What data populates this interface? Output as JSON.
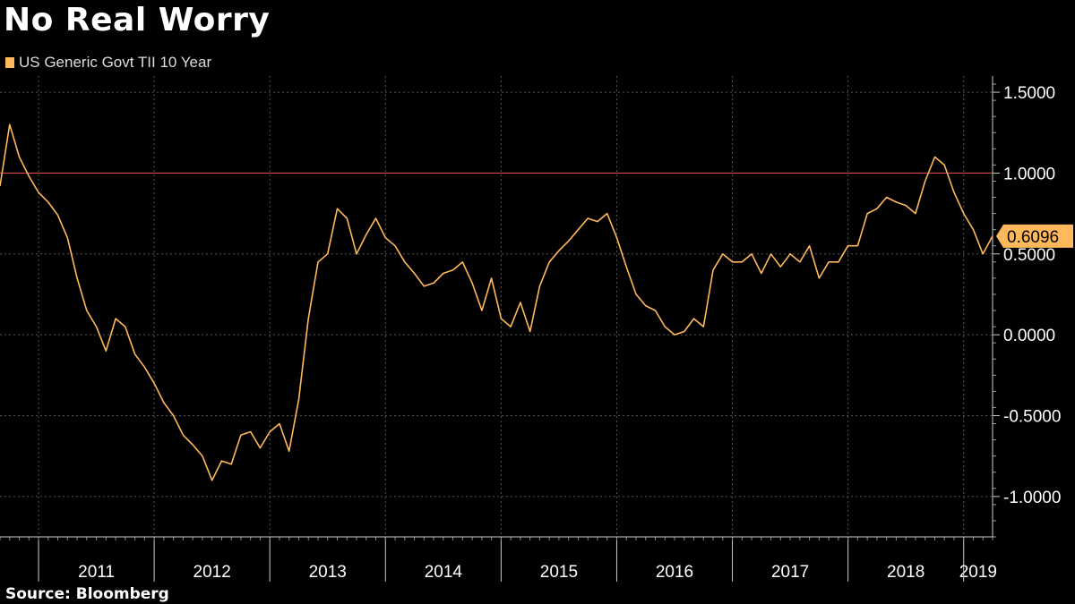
{
  "title": "No Real Worry",
  "source": "Source: Bloomberg",
  "colors": {
    "series": "#ffb85c",
    "reference_line": "#d64a3a",
    "grid": "#555555",
    "background": "#000000"
  },
  "chart_data": {
    "type": "line",
    "legend_position": "top-left",
    "grid": true,
    "y_axis_side": "right",
    "ylim": [
      -1.25,
      1.6
    ],
    "y_ticks": [
      1.5,
      1.0,
      0.5,
      0.0,
      -0.5,
      -1.0
    ],
    "y_tick_labels": [
      "1.5000",
      "1.0000",
      "0.5000",
      "0.0000",
      "-0.5000",
      "-1.0000"
    ],
    "x_range": [
      "2010-09",
      "2019-04"
    ],
    "x_tick_labels": [
      "2011",
      "2012",
      "2013",
      "2014",
      "2015",
      "2016",
      "2017",
      "2018",
      "2019"
    ],
    "reference_line": 1.0,
    "last_value_label": "0.6096",
    "series": [
      {
        "name": "US Generic Govt TII 10 Year",
        "x": [
          "2010-09",
          "2010-10",
          "2010-11",
          "2010-12",
          "2011-01",
          "2011-02",
          "2011-03",
          "2011-04",
          "2011-05",
          "2011-06",
          "2011-07",
          "2011-08",
          "2011-09",
          "2011-10",
          "2011-11",
          "2011-12",
          "2012-01",
          "2012-02",
          "2012-03",
          "2012-04",
          "2012-05",
          "2012-06",
          "2012-07",
          "2012-08",
          "2012-09",
          "2012-10",
          "2012-11",
          "2012-12",
          "2013-01",
          "2013-02",
          "2013-03",
          "2013-04",
          "2013-05",
          "2013-06",
          "2013-07",
          "2013-08",
          "2013-09",
          "2013-10",
          "2013-11",
          "2013-12",
          "2014-01",
          "2014-02",
          "2014-03",
          "2014-04",
          "2014-05",
          "2014-06",
          "2014-07",
          "2014-08",
          "2014-09",
          "2014-10",
          "2014-11",
          "2014-12",
          "2015-01",
          "2015-02",
          "2015-03",
          "2015-04",
          "2015-05",
          "2015-06",
          "2015-07",
          "2015-08",
          "2015-09",
          "2015-10",
          "2015-11",
          "2015-12",
          "2016-01",
          "2016-02",
          "2016-03",
          "2016-04",
          "2016-05",
          "2016-06",
          "2016-07",
          "2016-08",
          "2016-09",
          "2016-10",
          "2016-11",
          "2016-12",
          "2017-01",
          "2017-02",
          "2017-03",
          "2017-04",
          "2017-05",
          "2017-06",
          "2017-07",
          "2017-08",
          "2017-09",
          "2017-10",
          "2017-11",
          "2017-12",
          "2018-01",
          "2018-02",
          "2018-03",
          "2018-04",
          "2018-05",
          "2018-06",
          "2018-07",
          "2018-08",
          "2018-09",
          "2018-10",
          "2018-11",
          "2018-12",
          "2019-01",
          "2019-02",
          "2019-03",
          "2019-04"
        ],
        "values": [
          0.92,
          1.3,
          1.1,
          0.98,
          0.88,
          0.82,
          0.74,
          0.6,
          0.35,
          0.15,
          0.05,
          -0.1,
          0.1,
          0.05,
          -0.12,
          -0.2,
          -0.3,
          -0.42,
          -0.5,
          -0.62,
          -0.68,
          -0.75,
          -0.9,
          -0.78,
          -0.8,
          -0.62,
          -0.6,
          -0.7,
          -0.6,
          -0.55,
          -0.72,
          -0.4,
          0.1,
          0.45,
          0.5,
          0.78,
          0.72,
          0.5,
          0.62,
          0.72,
          0.6,
          0.55,
          0.45,
          0.38,
          0.3,
          0.32,
          0.38,
          0.4,
          0.45,
          0.32,
          0.15,
          0.35,
          0.1,
          0.05,
          0.2,
          0.02,
          0.3,
          0.45,
          0.52,
          0.58,
          0.65,
          0.72,
          0.7,
          0.75,
          0.6,
          0.42,
          0.25,
          0.18,
          0.15,
          0.05,
          0.0,
          0.02,
          0.1,
          0.05,
          0.4,
          0.5,
          0.45,
          0.45,
          0.5,
          0.38,
          0.5,
          0.42,
          0.5,
          0.45,
          0.55,
          0.35,
          0.45,
          0.45,
          0.55,
          0.55,
          0.75,
          0.78,
          0.85,
          0.82,
          0.8,
          0.75,
          0.95,
          1.1,
          1.05,
          0.88,
          0.75,
          0.65,
          0.5,
          0.61
        ]
      }
    ]
  }
}
